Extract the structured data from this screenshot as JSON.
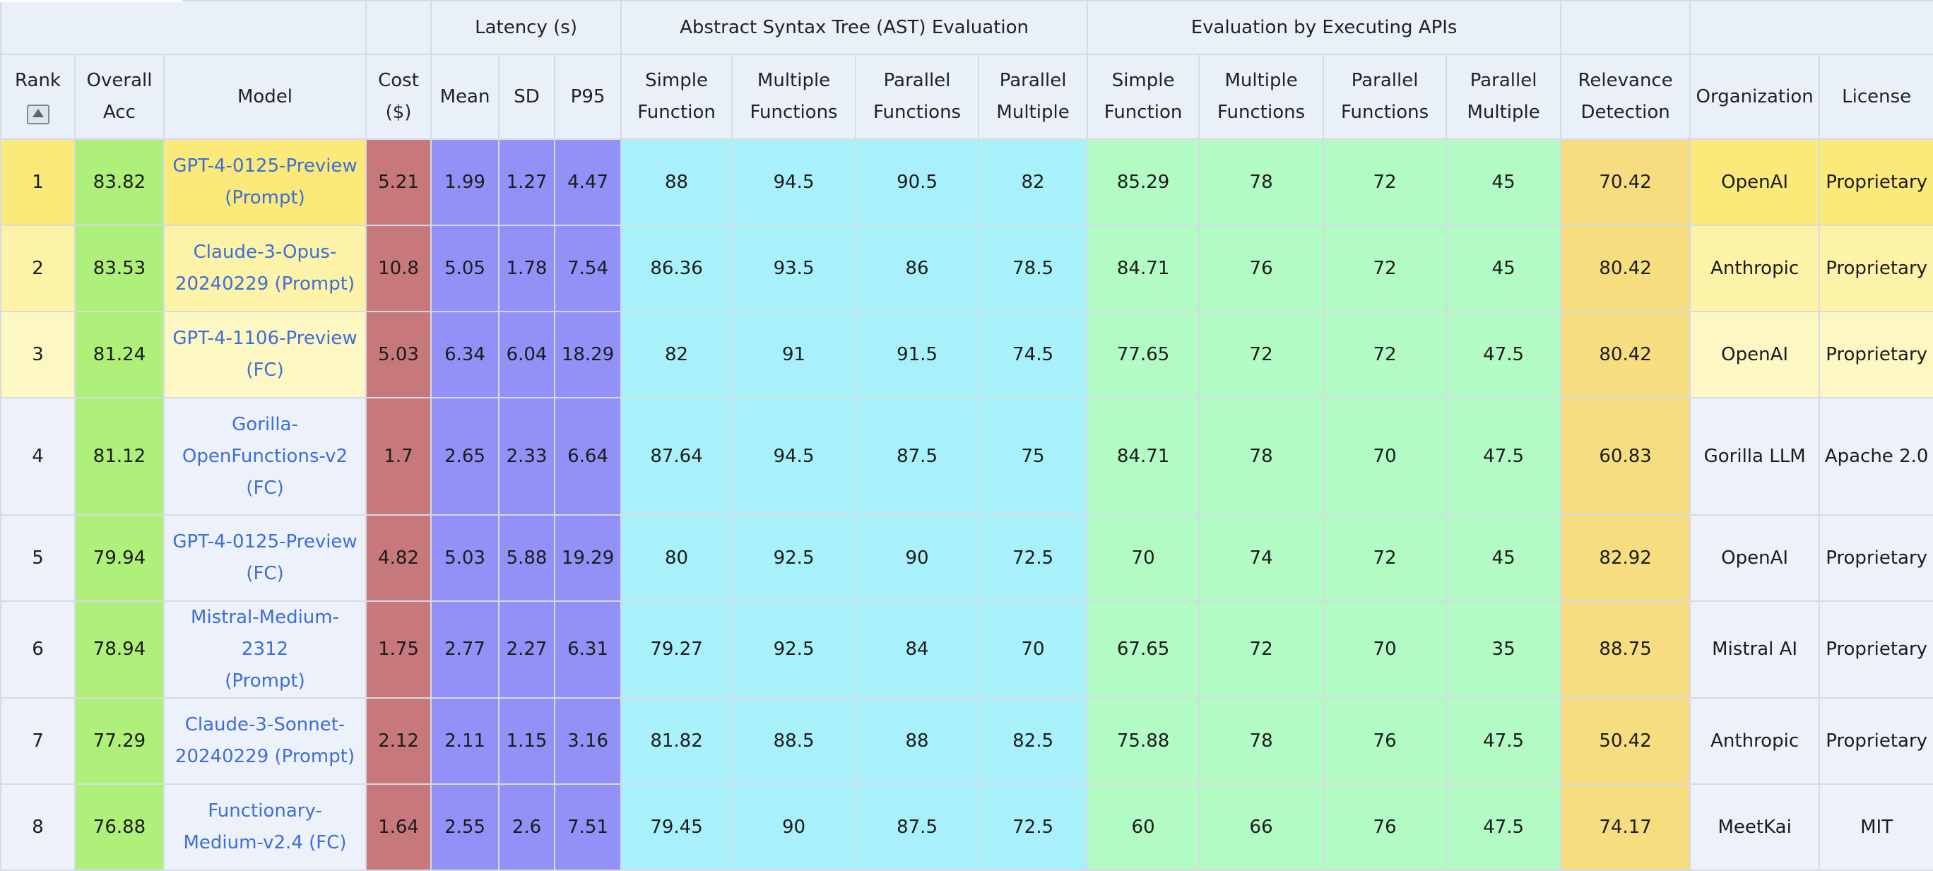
{
  "header": {
    "groups": {
      "latency": "Latency (s)",
      "ast": "Abstract Syntax Tree (AST) Evaluation",
      "exec": "Evaluation by Executing APIs"
    },
    "columns": {
      "rank": "Rank",
      "overall": [
        "Overall",
        "Acc"
      ],
      "model": "Model",
      "cost": [
        "Cost",
        "($)"
      ],
      "mean": "Mean",
      "sd": "SD",
      "p95": "P95",
      "ast_simple": [
        "Simple",
        "Function"
      ],
      "ast_multiple": [
        "Multiple",
        "Functions"
      ],
      "ast_parallel": [
        "Parallel",
        "Functions"
      ],
      "ast_parallel_multiple": [
        "Parallel",
        "Multiple"
      ],
      "exec_simple": [
        "Simple",
        "Function"
      ],
      "exec_multiple": [
        "Multiple",
        "Functions"
      ],
      "exec_parallel": [
        "Parallel",
        "Functions"
      ],
      "exec_parallel_multiple": [
        "Parallel",
        "Multiple"
      ],
      "relevance": [
        "Relevance",
        "Detection"
      ],
      "organization": "Organization",
      "license": "License"
    }
  },
  "colors": {
    "header_bg": "#e9f0fa",
    "row_highlight": [
      "#fbe97a",
      "#fdf3a8",
      "#fdf7c4"
    ],
    "row_default": "#ecf1fa",
    "overall": "#aef07a",
    "cost": "#c7787a",
    "latency": "#9191f7",
    "ast": "#a8f1fa",
    "exec": "#b3fbc4",
    "relevance": "#f6dd80",
    "model_link": "#3d6ed6"
  },
  "rows": [
    {
      "rank": "1",
      "overall": "83.82",
      "model": [
        "GPT-4-0125-Preview",
        "(Prompt)"
      ],
      "cost": "5.21",
      "mean": "1.99",
      "sd": "1.27",
      "p95": "4.47",
      "ast_simple": "88",
      "ast_multiple": "94.5",
      "ast_parallel": "90.5",
      "ast_parallel_multiple": "82",
      "exec_simple": "85.29",
      "exec_multiple": "78",
      "exec_parallel": "72",
      "exec_parallel_multiple": "45",
      "relevance": "70.42",
      "organization": "OpenAI",
      "license": "Proprietary"
    },
    {
      "rank": "2",
      "overall": "83.53",
      "model": [
        "Claude-3-Opus-",
        "20240229 (Prompt)"
      ],
      "cost": "10.8",
      "mean": "5.05",
      "sd": "1.78",
      "p95": "7.54",
      "ast_simple": "86.36",
      "ast_multiple": "93.5",
      "ast_parallel": "86",
      "ast_parallel_multiple": "78.5",
      "exec_simple": "84.71",
      "exec_multiple": "76",
      "exec_parallel": "72",
      "exec_parallel_multiple": "45",
      "relevance": "80.42",
      "organization": "Anthropic",
      "license": "Proprietary"
    },
    {
      "rank": "3",
      "overall": "81.24",
      "model": [
        "GPT-4-1106-Preview",
        "(FC)"
      ],
      "cost": "5.03",
      "mean": "6.34",
      "sd": "6.04",
      "p95": "18.29",
      "ast_simple": "82",
      "ast_multiple": "91",
      "ast_parallel": "91.5",
      "ast_parallel_multiple": "74.5",
      "exec_simple": "77.65",
      "exec_multiple": "72",
      "exec_parallel": "72",
      "exec_parallel_multiple": "47.5",
      "relevance": "80.42",
      "organization": "OpenAI",
      "license": "Proprietary"
    },
    {
      "rank": "4",
      "overall": "81.12",
      "model": [
        "Gorilla-",
        "OpenFunctions-v2",
        "(FC)"
      ],
      "cost": "1.7",
      "mean": "2.65",
      "sd": "2.33",
      "p95": "6.64",
      "ast_simple": "87.64",
      "ast_multiple": "94.5",
      "ast_parallel": "87.5",
      "ast_parallel_multiple": "75",
      "exec_simple": "84.71",
      "exec_multiple": "78",
      "exec_parallel": "70",
      "exec_parallel_multiple": "47.5",
      "relevance": "60.83",
      "organization": "Gorilla LLM",
      "license": "Apache 2.0"
    },
    {
      "rank": "5",
      "overall": "79.94",
      "model": [
        "GPT-4-0125-Preview",
        "(FC)"
      ],
      "cost": "4.82",
      "mean": "5.03",
      "sd": "5.88",
      "p95": "19.29",
      "ast_simple": "80",
      "ast_multiple": "92.5",
      "ast_parallel": "90",
      "ast_parallel_multiple": "72.5",
      "exec_simple": "70",
      "exec_multiple": "74",
      "exec_parallel": "72",
      "exec_parallel_multiple": "45",
      "relevance": "82.92",
      "organization": "OpenAI",
      "license": "Proprietary"
    },
    {
      "rank": "6",
      "overall": "78.94",
      "model": [
        "Mistral-Medium-2312",
        "(Prompt)"
      ],
      "cost": "1.75",
      "mean": "2.77",
      "sd": "2.27",
      "p95": "6.31",
      "ast_simple": "79.27",
      "ast_multiple": "92.5",
      "ast_parallel": "84",
      "ast_parallel_multiple": "70",
      "exec_simple": "67.65",
      "exec_multiple": "72",
      "exec_parallel": "70",
      "exec_parallel_multiple": "35",
      "relevance": "88.75",
      "organization": "Mistral AI",
      "license": "Proprietary"
    },
    {
      "rank": "7",
      "overall": "77.29",
      "model": [
        "Claude-3-Sonnet-",
        "20240229 (Prompt)"
      ],
      "cost": "2.12",
      "mean": "2.11",
      "sd": "1.15",
      "p95": "3.16",
      "ast_simple": "81.82",
      "ast_multiple": "88.5",
      "ast_parallel": "88",
      "ast_parallel_multiple": "82.5",
      "exec_simple": "75.88",
      "exec_multiple": "78",
      "exec_parallel": "76",
      "exec_parallel_multiple": "47.5",
      "relevance": "50.42",
      "organization": "Anthropic",
      "license": "Proprietary"
    },
    {
      "rank": "8",
      "overall": "76.88",
      "model": [
        "Functionary-",
        "Medium-v2.4 (FC)"
      ],
      "cost": "1.64",
      "mean": "2.55",
      "sd": "2.6",
      "p95": "7.51",
      "ast_simple": "79.45",
      "ast_multiple": "90",
      "ast_parallel": "87.5",
      "ast_parallel_multiple": "72.5",
      "exec_simple": "60",
      "exec_multiple": "66",
      "exec_parallel": "76",
      "exec_parallel_multiple": "47.5",
      "relevance": "74.17",
      "organization": "MeetKai",
      "license": "MIT"
    }
  ]
}
